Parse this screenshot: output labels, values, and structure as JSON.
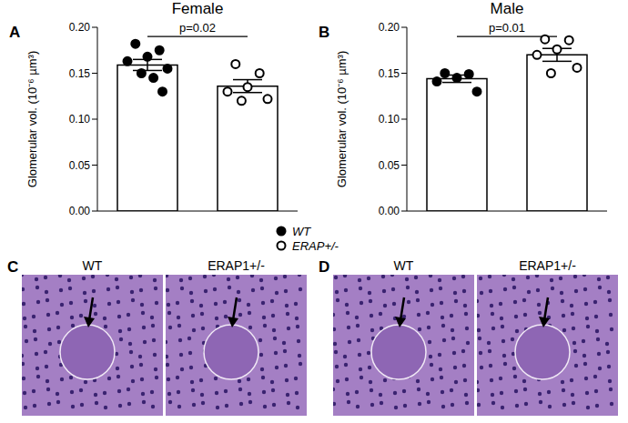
{
  "legend_items": [
    {
      "label": "WT",
      "marker": "filled"
    },
    {
      "label": "ERAP+/-",
      "marker": "open"
    }
  ],
  "chart_data": [
    {
      "panel": "A",
      "type": "bar",
      "title": "Female",
      "y_label": "Glomerular vol. (10⁻⁶ µm³)",
      "categories": [
        null,
        null
      ],
      "values": [
        0.159,
        0.136
      ],
      "errors": [
        0.006,
        0.007
      ],
      "points": [
        [
          0.182,
          0.175,
          0.168,
          0.163,
          0.155,
          0.15,
          0.145,
          0.13
        ],
        [
          0.16,
          0.15,
          0.135,
          0.13,
          0.122,
          0.12
        ]
      ],
      "markers": [
        "filled",
        "open"
      ],
      "color": "#ffffff",
      "ylim": [
        0,
        0.2
      ],
      "yticks": [
        {
          "value": 0,
          "label": "0.00"
        },
        {
          "value": 0.05,
          "label": "0.05"
        },
        {
          "value": 0.1,
          "label": "0.10"
        },
        {
          "value": 0.15,
          "label": "0.15"
        },
        {
          "value": 0.2,
          "label": "0.20"
        }
      ],
      "annotations": [
        {
          "text": "p=0.02"
        }
      ]
    },
    {
      "panel": "B",
      "type": "bar",
      "title": "Male",
      "y_label": "Glomerular vol. (10⁻⁶ µm³)",
      "categories": [
        null,
        null
      ],
      "values": [
        0.144,
        0.17
      ],
      "errors": [
        0.004,
        0.007
      ],
      "points": [
        [
          0.15,
          0.149,
          0.145,
          0.141,
          0.13
        ],
        [
          0.187,
          0.186,
          0.176,
          0.17,
          0.156,
          0.15
        ]
      ],
      "markers": [
        "filled",
        "open"
      ],
      "color": "#ffffff",
      "ylim": [
        0,
        0.2
      ],
      "yticks": [
        {
          "value": 0,
          "label": "0.00"
        },
        {
          "value": 0.05,
          "label": "0.05"
        },
        {
          "value": 0.1,
          "label": "0.10"
        },
        {
          "value": 0.15,
          "label": "0.15"
        },
        {
          "value": 0.2,
          "label": "0.20"
        }
      ],
      "annotations": [
        {
          "text": "p=0.01"
        }
      ]
    }
  ],
  "images": [
    {
      "panel": "C",
      "labels": [
        "WT",
        "ERAP1+/-"
      ]
    },
    {
      "panel": "D",
      "labels": [
        "WT",
        "ERAP1+/-"
      ]
    }
  ]
}
